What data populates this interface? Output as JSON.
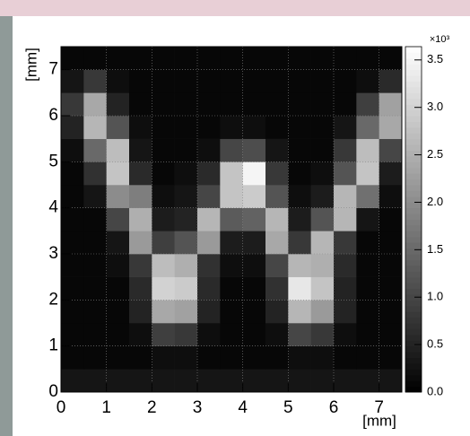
{
  "chart_data": {
    "type": "heatmap",
    "colormap": "gray",
    "grid": true,
    "xlabel": "[mm]",
    "ylabel": "[mm]",
    "colorbar_exponent": "×10³",
    "xbins": [
      0,
      0.5,
      1,
      1.5,
      2,
      2.5,
      3,
      3.5,
      4,
      4.5,
      5,
      5.5,
      6,
      6.5,
      7,
      7.5
    ],
    "ybins": [
      0,
      0.5,
      1,
      1.5,
      2,
      2.5,
      3,
      3.5,
      4,
      4.5,
      5,
      5.5,
      6,
      6.5,
      7,
      7.5
    ],
    "xlim": [
      0,
      7.5
    ],
    "ylim": [
      0,
      7.5
    ],
    "xticks": [
      0,
      1,
      2,
      3,
      4,
      5,
      6,
      7
    ],
    "yticks": [
      0,
      1,
      2,
      3,
      4,
      5,
      6,
      7
    ],
    "zlim": [
      0,
      3.64
    ],
    "zticks": [
      {
        "value": 0,
        "label": "0.0"
      },
      {
        "value": 0.5,
        "label": "0.5"
      },
      {
        "value": 1,
        "label": "1.0"
      },
      {
        "value": 1.5,
        "label": "1.5"
      },
      {
        "value": 2,
        "label": "2.0"
      },
      {
        "value": 2.5,
        "label": "2.5"
      },
      {
        "value": 3,
        "label": "3.0"
      },
      {
        "value": 3.5,
        "label": "3.5"
      }
    ],
    "z": [
      [
        0.3,
        0.3,
        0.3,
        0.3,
        0.3,
        0.3,
        0.3,
        0.3,
        0.3,
        0.3,
        0.3,
        0.3,
        0.3,
        0.3,
        0.3
      ],
      [
        0.1,
        0.1,
        0.1,
        0.1,
        0.2,
        0.2,
        0.1,
        0.1,
        0.1,
        0.1,
        0.2,
        0.2,
        0.1,
        0.1,
        0.1
      ],
      [
        0.1,
        0.1,
        0.1,
        0.2,
        0.9,
        0.8,
        0.2,
        0.1,
        0.1,
        0.2,
        1.0,
        0.8,
        0.2,
        0.1,
        0.1
      ],
      [
        0.1,
        0.1,
        0.1,
        0.5,
        2.4,
        2.3,
        0.5,
        0.1,
        0.1,
        0.5,
        2.6,
        2.2,
        0.5,
        0.1,
        0.1
      ],
      [
        0.1,
        0.1,
        0.1,
        0.6,
        3.0,
        2.9,
        0.6,
        0.1,
        0.1,
        0.7,
        3.3,
        2.8,
        0.5,
        0.1,
        0.1
      ],
      [
        0.1,
        0.1,
        0.2,
        0.8,
        2.7,
        2.5,
        0.7,
        0.2,
        0.2,
        1.0,
        2.6,
        2.5,
        0.6,
        0.1,
        0.1
      ],
      [
        0.1,
        0.1,
        0.3,
        2.2,
        0.9,
        1.2,
        2.2,
        0.4,
        0.4,
        2.4,
        0.8,
        2.6,
        0.8,
        0.1,
        0.1
      ],
      [
        0.1,
        0.1,
        1.0,
        2.5,
        0.4,
        0.5,
        2.6,
        1.3,
        1.4,
        2.6,
        0.4,
        1.2,
        2.6,
        0.3,
        0.1
      ],
      [
        0.1,
        0.3,
        2.0,
        1.8,
        0.2,
        0.3,
        1.0,
        2.8,
        2.9,
        1.2,
        0.2,
        0.4,
        2.6,
        1.6,
        0.2
      ],
      [
        0.1,
        0.7,
        2.8,
        0.6,
        0.1,
        0.2,
        0.6,
        2.8,
        3.5,
        0.8,
        0.1,
        0.2,
        1.2,
        2.8,
        0.4
      ],
      [
        0.2,
        1.5,
        2.7,
        0.3,
        0.1,
        0.1,
        0.2,
        1.0,
        1.1,
        0.3,
        0.1,
        0.1,
        0.8,
        2.7,
        1.0
      ],
      [
        0.5,
        2.6,
        1.2,
        0.2,
        0.1,
        0.1,
        0.1,
        0.2,
        0.2,
        0.1,
        0.1,
        0.1,
        0.3,
        1.5,
        2.4
      ],
      [
        0.8,
        2.4,
        0.5,
        0.1,
        0.1,
        0.1,
        0.1,
        0.1,
        0.1,
        0.1,
        0.1,
        0.1,
        0.1,
        0.9,
        2.3
      ],
      [
        0.3,
        0.8,
        0.2,
        0.1,
        0.1,
        0.1,
        0.1,
        0.1,
        0.1,
        0.1,
        0.1,
        0.1,
        0.1,
        0.2,
        0.6
      ],
      [
        0.1,
        0.1,
        0.1,
        0.1,
        0.1,
        0.1,
        0.1,
        0.1,
        0.1,
        0.1,
        0.1,
        0.1,
        0.1,
        0.1,
        0.1
      ]
    ]
  }
}
